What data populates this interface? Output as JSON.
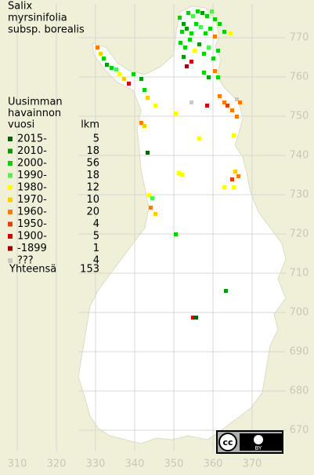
{
  "title": [
    "Salix",
    "myrsinifolia",
    "subsp. borealis"
  ],
  "legend": {
    "header": [
      "Uusimman",
      "havainnon",
      "vuosi"
    ],
    "count_header": "lkm",
    "items": [
      {
        "label": "2015-",
        "count": 5,
        "color": "#006400"
      },
      {
        "label": "2010-",
        "count": 18,
        "color": "#009c00"
      },
      {
        "label": "2000-",
        "count": 56,
        "color": "#00d200"
      },
      {
        "label": "1990-",
        "count": 18,
        "color": "#50f050"
      },
      {
        "label": "1980-",
        "count": 12,
        "color": "#ffff00"
      },
      {
        "label": "1970-",
        "count": 10,
        "color": "#ffcc00"
      },
      {
        "label": "1960-",
        "count": 20,
        "color": "#ff7a00"
      },
      {
        "label": "1950-",
        "count": 4,
        "color": "#e04000"
      },
      {
        "label": "1900-",
        "count": 5,
        "color": "#d00000"
      },
      {
        "label": "-1899",
        "count": 1,
        "color": "#9a0000"
      },
      {
        "label": "???",
        "count": 4,
        "color": "#c8c8c8"
      }
    ],
    "total_label": "Yhteensä",
    "total": 153
  },
  "y_grid_labels": [
    770,
    760,
    750,
    740,
    730,
    720,
    710,
    700,
    690,
    680,
    670
  ],
  "x_grid_labels": [
    310,
    320,
    330,
    340,
    350,
    360,
    370
  ],
  "license": {
    "cc": "cc",
    "by": "BY"
  }
}
